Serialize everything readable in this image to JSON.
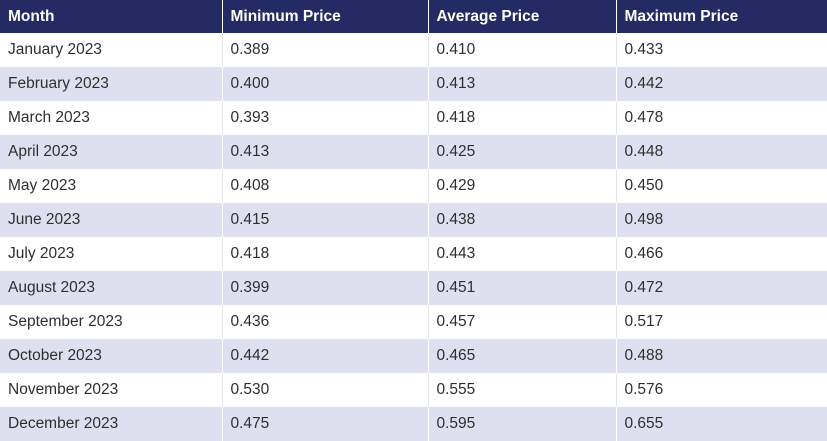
{
  "chart_data": {
    "type": "table",
    "columns": [
      "Month",
      "Minimum Price",
      "Average Price",
      "Maximum Price"
    ],
    "rows": [
      [
        "January 2023",
        "0.389",
        "0.410",
        "0.433"
      ],
      [
        "February 2023",
        "0.400",
        "0.413",
        "0.442"
      ],
      [
        "March 2023",
        "0.393",
        "0.418",
        "0.478"
      ],
      [
        "April 2023",
        "0.413",
        "0.425",
        "0.448"
      ],
      [
        "May 2023",
        "0.408",
        "0.429",
        "0.450"
      ],
      [
        "June 2023",
        "0.415",
        "0.438",
        "0.498"
      ],
      [
        "July 2023",
        "0.418",
        "0.443",
        "0.466"
      ],
      [
        "August 2023",
        "0.399",
        "0.451",
        "0.472"
      ],
      [
        "September 2023",
        "0.436",
        "0.457",
        "0.517"
      ],
      [
        "October 2023",
        "0.442",
        "0.465",
        "0.488"
      ],
      [
        "November 2023",
        "0.530",
        "0.555",
        "0.576"
      ],
      [
        "December 2023",
        "0.475",
        "0.595",
        "0.655"
      ]
    ],
    "header_color": "#242a63",
    "stripe_color": "#dfe0ef"
  }
}
